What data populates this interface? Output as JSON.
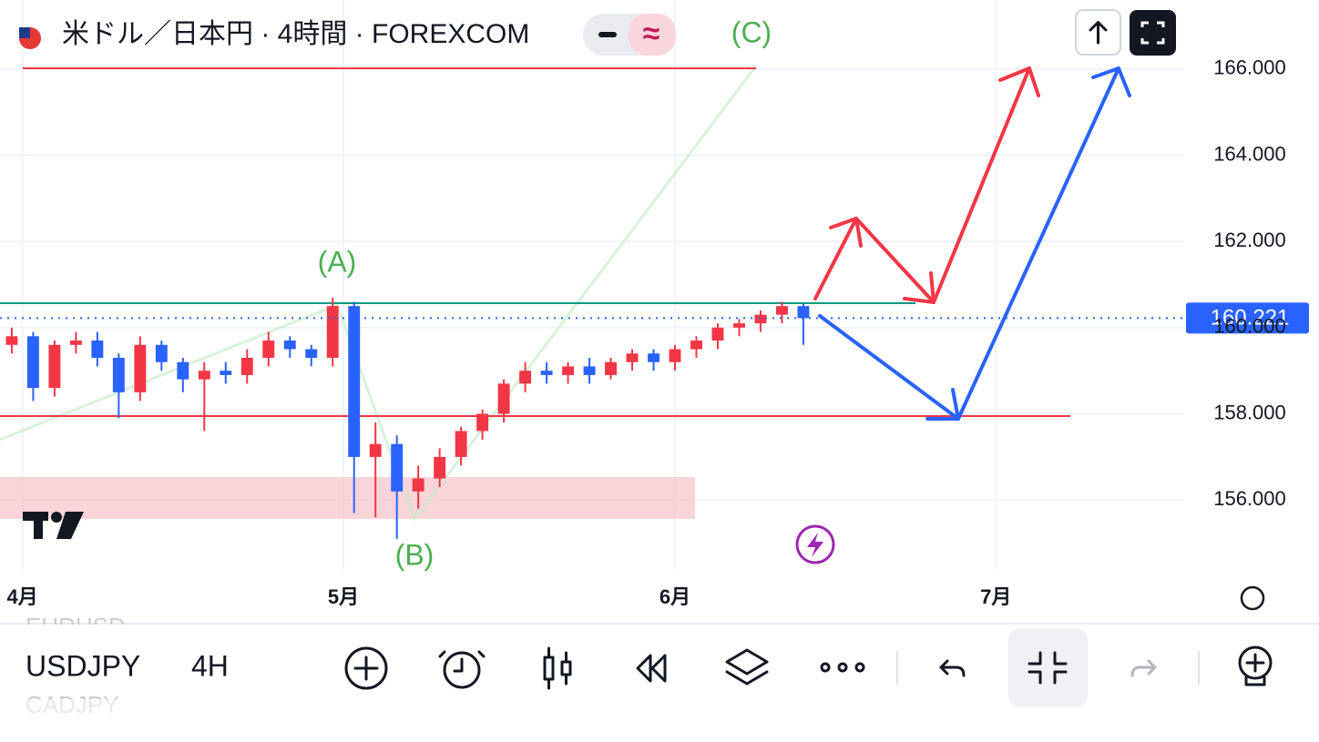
{
  "header": {
    "title": "米ドル／日本円 · 4時間 · FOREXCOM",
    "style_badge": "≈"
  },
  "chart_data": {
    "type": "candlestick",
    "x": [
      -1,
      1,
      3,
      5,
      7,
      9,
      11,
      13,
      15,
      17,
      19,
      21,
      23,
      25,
      27,
      29,
      31,
      33,
      35,
      37,
      39,
      41,
      43,
      45,
      47,
      49,
      51,
      53,
      55,
      57,
      59,
      61,
      63,
      65,
      67,
      69,
      71,
      73
    ],
    "open": [
      159.6,
      159.8,
      158.6,
      159.6,
      159.7,
      159.3,
      158.5,
      159.6,
      159.2,
      158.8,
      159.0,
      158.9,
      159.3,
      159.7,
      159.5,
      159.3,
      160.5,
      157.0,
      157.3,
      156.2,
      156.5,
      157.0,
      157.6,
      158.0,
      158.7,
      159.0,
      158.9,
      159.1,
      158.9,
      159.2,
      159.4,
      159.2,
      159.5,
      159.7,
      160.0,
      160.1,
      160.3,
      160.5
    ],
    "high": [
      160.0,
      159.9,
      159.7,
      159.9,
      159.9,
      159.4,
      159.8,
      159.7,
      159.3,
      159.2,
      159.2,
      159.5,
      159.9,
      159.8,
      159.6,
      160.7,
      160.6,
      157.8,
      157.5,
      156.8,
      157.2,
      157.7,
      158.1,
      158.8,
      159.2,
      159.2,
      159.2,
      159.3,
      159.3,
      159.5,
      159.5,
      159.6,
      159.8,
      160.1,
      160.2,
      160.4,
      160.6,
      160.55
    ],
    "low": [
      159.4,
      158.3,
      158.4,
      159.4,
      159.1,
      157.9,
      158.3,
      159.0,
      158.5,
      157.6,
      158.7,
      158.7,
      159.1,
      159.3,
      159.1,
      159.1,
      155.7,
      155.6,
      155.1,
      155.8,
      156.3,
      156.8,
      157.4,
      157.8,
      158.5,
      158.7,
      158.7,
      158.7,
      158.8,
      159.0,
      159.0,
      159.0,
      159.3,
      159.5,
      159.8,
      159.9,
      160.1,
      159.6
    ],
    "close": [
      159.8,
      158.6,
      159.6,
      159.7,
      159.3,
      158.5,
      159.6,
      159.2,
      158.8,
      159.0,
      158.9,
      159.3,
      159.7,
      159.5,
      159.3,
      160.5,
      157.0,
      157.3,
      156.2,
      156.5,
      157.0,
      157.6,
      158.0,
      158.7,
      159.0,
      158.9,
      159.1,
      158.9,
      159.2,
      159.4,
      159.2,
      159.5,
      159.7,
      160.0,
      160.1,
      160.3,
      160.5,
      160.22
    ],
    "up_color": "#f23645",
    "down_color": "#2962ff",
    "xlim": [
      -2.1,
      108.6
    ],
    "xticks": [
      {
        "value": 0,
        "label": "4月"
      },
      {
        "value": 30,
        "label": "5月"
      },
      {
        "value": 61,
        "label": "6月"
      },
      {
        "value": 91,
        "label": "7月"
      }
    ],
    "ylim": [
      154.4,
      167.6
    ],
    "yticks": [
      {
        "value": 156,
        "label": "156.000"
      },
      {
        "value": 158,
        "label": "158.000"
      },
      {
        "value": 160,
        "label": "160.000"
      },
      {
        "value": 162,
        "label": "162.000"
      },
      {
        "value": 164,
        "label": "164.000"
      },
      {
        "value": 166,
        "label": "166.000"
      }
    ],
    "grid": true,
    "last_price": {
      "value": 160.221,
      "label": "160.221"
    },
    "annotations": [
      "(A)",
      "(B)",
      "(C)"
    ]
  },
  "toolbar": {
    "symbol": "USDJPY",
    "interval": "4H",
    "symbol_above": "EURUSD",
    "symbol_below": "CADJPY"
  }
}
